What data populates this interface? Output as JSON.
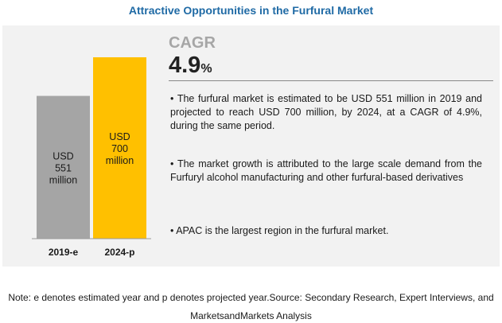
{
  "title": "Attractive Opportunities in the Furfural Market",
  "cagr": {
    "label": "CAGR",
    "value": "4.9",
    "unit": "%"
  },
  "bullets": [
    "The furfural market is estimated to be USD 551 million in 2019 and projected to reach USD 700 million, by 2024, at a CAGR of 4.9%, during the same period.",
    "The market growth is attributed to the large scale demand from the Furfuryl alcohol manufacturing  and other furfural-based derivatives",
    "APAC is the largest region in the furfural market."
  ],
  "note_line1": "Note: e denotes estimated year and p denotes projected year.Source: Secondary Research, Expert Interviews, and",
  "note_line2": "MarketsandMarkets Analysis",
  "chart_data": {
    "type": "bar",
    "categories": [
      "2019-e",
      "2024-p"
    ],
    "values": [
      551,
      700
    ],
    "bar_labels": [
      [
        "USD",
        "551",
        "million"
      ],
      [
        "USD",
        "700",
        "million"
      ]
    ],
    "colors": [
      "#a5a5a5",
      "#ffc000"
    ],
    "title": "",
    "xlabel": "",
    "ylabel": ""
  }
}
